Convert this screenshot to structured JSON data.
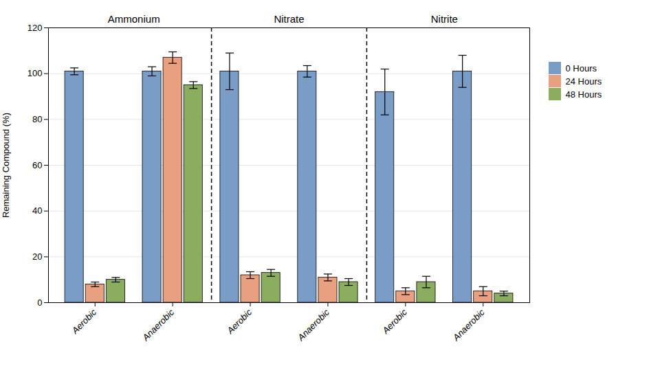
{
  "chart_data": {
    "type": "bar",
    "categories": [
      "Aerobic",
      "Anaerobic",
      "Aerobic",
      "Anaerobic",
      "Aerobic",
      "Anaerobic"
    ],
    "annotations": [
      "Ammonium",
      "Nitrate",
      "Nitrite"
    ],
    "series": [
      {
        "name": "0 Hours",
        "color": "#7a9dc8",
        "values": [
          101,
          101,
          101,
          101,
          92,
          101
        ],
        "errors": [
          1.5,
          2.0,
          8.0,
          2.5,
          10.0,
          7.0
        ]
      },
      {
        "name": "24 Hours",
        "color": "#e8a080",
        "values": [
          8,
          107,
          12,
          11,
          5,
          5
        ],
        "errors": [
          1.0,
          2.5,
          1.5,
          1.5,
          1.5,
          2.0
        ]
      },
      {
        "name": "48 Hours",
        "color": "#8aad60",
        "values": [
          10,
          95,
          13,
          9,
          9,
          4
        ],
        "errors": [
          1.0,
          1.5,
          1.5,
          1.5,
          2.5,
          1.0
        ]
      }
    ],
    "ylabel": "Remaining Compound (%)",
    "ylim": [
      0,
      120
    ],
    "yticks": [
      0,
      20,
      40,
      60,
      80,
      100,
      120
    ],
    "grid": true,
    "legend": "right"
  }
}
